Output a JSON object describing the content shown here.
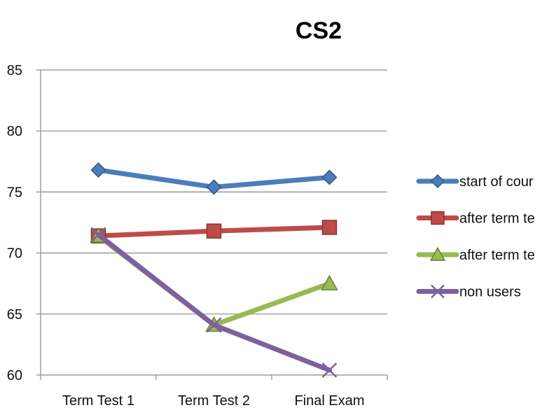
{
  "chart_data": {
    "type": "line",
    "title": "CS2",
    "xlabel": "",
    "ylabel": "",
    "categories": [
      "Term Test 1",
      "Term Test 2",
      "Final Exam"
    ],
    "ylim": [
      60,
      85
    ],
    "yticks": [
      60,
      65,
      70,
      75,
      80,
      85
    ],
    "grid": true,
    "legend_position": "right",
    "series": [
      {
        "name": "start of cour",
        "values": [
          76.8,
          75.4,
          76.2
        ],
        "color": "#4a7ebb",
        "marker": "diamond"
      },
      {
        "name": "after term te",
        "values": [
          71.4,
          71.8,
          72.1
        ],
        "color": "#be4b48",
        "marker": "square"
      },
      {
        "name": "after term te",
        "values": [
          71.4,
          64.1,
          67.5
        ],
        "color": "#98b954",
        "marker": "triangle"
      },
      {
        "name": "non users",
        "values": [
          71.5,
          64.1,
          60.4
        ],
        "color": "#7d60a0",
        "marker": "x"
      }
    ]
  }
}
